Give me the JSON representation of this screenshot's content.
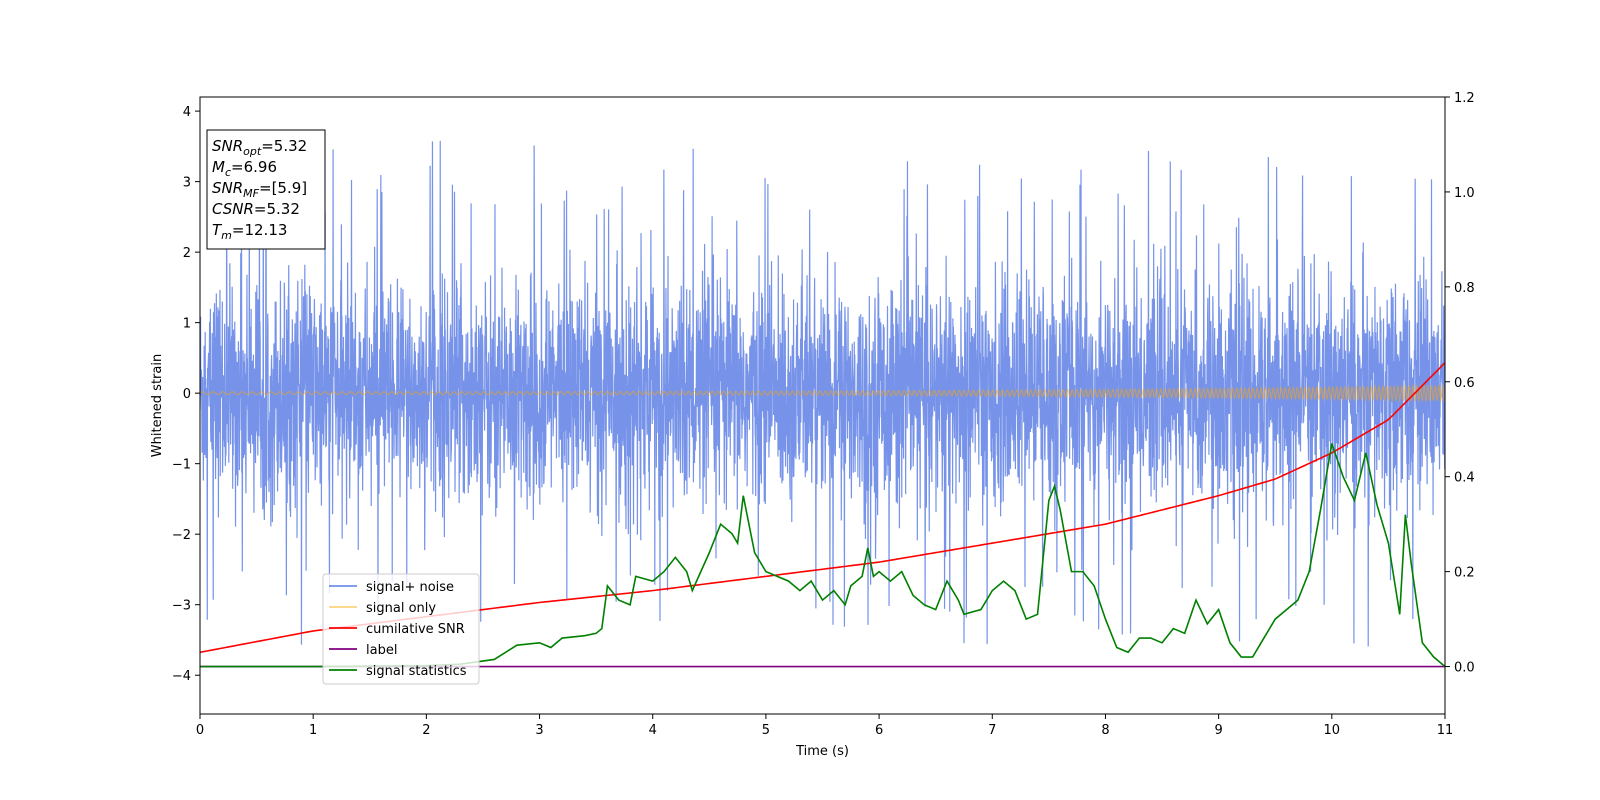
{
  "chart_data": {
    "type": "line",
    "xlabel": "Time (s)",
    "ylabel": "Whitened strain",
    "xlim": [
      0,
      11
    ],
    "ylim_left": [
      -4.55,
      4.2
    ],
    "ylim_right": [
      -0.1,
      1.2
    ],
    "x_ticks": [
      "0",
      "1",
      "2",
      "3",
      "4",
      "5",
      "6",
      "7",
      "8",
      "9",
      "10",
      "11"
    ],
    "y_left_ticks": [
      "−4",
      "−3",
      "−2",
      "−1",
      "0",
      "1",
      "2",
      "3",
      "4"
    ],
    "y_right_ticks": [
      "0.0",
      "0.2",
      "0.4",
      "0.6",
      "0.8",
      "1.0",
      "1.2"
    ],
    "grid": false,
    "legend_position": "lower-left",
    "annotation": {
      "snr_opt": {
        "var": "SNR",
        "sub": "opt",
        "value": "=5.32"
      },
      "mc": {
        "var": "M",
        "sub": "c",
        "value": "=6.96"
      },
      "snr_mf": {
        "var": "SNR",
        "sub": "MF",
        "value": "=[5.9]"
      },
      "csnr": {
        "var": "CSNR",
        "sub": "",
        "value": "=5.32"
      },
      "tm": {
        "var": "T",
        "sub": "m",
        "value": "=12.13"
      }
    },
    "series": [
      {
        "name": "signal+ noise",
        "axis": "left",
        "color": "#4169e1",
        "description_values": "dense whitened noise, |amplitude| mostly < 2.3, spikes to ~3.8 and down to ~-4.2",
        "amplitude_envelope": 2.2
      },
      {
        "name": "signal only",
        "axis": "left",
        "color": "#ffa500",
        "amp_start": 0.02,
        "amp_end": 0.11
      },
      {
        "name": "cumilative SNR",
        "axis": "right",
        "color": "#ff0000",
        "x": [
          0,
          1,
          2,
          3,
          4,
          5,
          6,
          7,
          8,
          9,
          9.5,
          10,
          10.5,
          11
        ],
        "values": [
          0.03,
          0.075,
          0.105,
          0.135,
          0.16,
          0.19,
          0.22,
          0.26,
          0.3,
          0.36,
          0.395,
          0.45,
          0.52,
          0.64
        ]
      },
      {
        "name": "label",
        "axis": "right",
        "color": "#800080",
        "x": [
          0,
          11
        ],
        "values": [
          0.0,
          0.0
        ]
      },
      {
        "name": "signal statistics",
        "axis": "right",
        "color": "#008000",
        "x": [
          0,
          1,
          2,
          2.3,
          2.6,
          2.8,
          3.0,
          3.1,
          3.2,
          3.4,
          3.5,
          3.55,
          3.6,
          3.7,
          3.8,
          3.85,
          4.0,
          4.1,
          4.2,
          4.3,
          4.35,
          4.5,
          4.6,
          4.7,
          4.75,
          4.8,
          4.9,
          5.0,
          5.2,
          5.3,
          5.4,
          5.5,
          5.6,
          5.7,
          5.75,
          5.85,
          5.9,
          5.95,
          6.0,
          6.1,
          6.2,
          6.3,
          6.4,
          6.5,
          6.6,
          6.7,
          6.75,
          6.9,
          7.0,
          7.1,
          7.2,
          7.3,
          7.4,
          7.5,
          7.55,
          7.6,
          7.7,
          7.8,
          7.9,
          8.0,
          8.1,
          8.2,
          8.3,
          8.4,
          8.5,
          8.6,
          8.7,
          8.8,
          8.9,
          9.0,
          9.1,
          9.2,
          9.3,
          9.4,
          9.5,
          9.6,
          9.7,
          9.8,
          9.9,
          10.0,
          10.1,
          10.2,
          10.3,
          10.4,
          10.5,
          10.6,
          10.65,
          10.7,
          10.8,
          10.9,
          11.0
        ],
        "values": [
          0.0,
          0.0,
          0.002,
          0.005,
          0.015,
          0.045,
          0.05,
          0.04,
          0.06,
          0.065,
          0.07,
          0.08,
          0.17,
          0.14,
          0.13,
          0.19,
          0.18,
          0.2,
          0.23,
          0.2,
          0.16,
          0.24,
          0.3,
          0.28,
          0.26,
          0.36,
          0.24,
          0.2,
          0.18,
          0.16,
          0.18,
          0.14,
          0.16,
          0.13,
          0.17,
          0.19,
          0.25,
          0.19,
          0.2,
          0.18,
          0.2,
          0.15,
          0.13,
          0.12,
          0.18,
          0.14,
          0.11,
          0.12,
          0.16,
          0.18,
          0.16,
          0.1,
          0.11,
          0.35,
          0.38,
          0.33,
          0.2,
          0.2,
          0.17,
          0.1,
          0.04,
          0.03,
          0.06,
          0.06,
          0.05,
          0.08,
          0.07,
          0.14,
          0.09,
          0.12,
          0.05,
          0.02,
          0.02,
          0.06,
          0.1,
          0.12,
          0.14,
          0.2,
          0.33,
          0.47,
          0.4,
          0.35,
          0.45,
          0.34,
          0.26,
          0.11,
          0.32,
          0.22,
          0.05,
          0.02,
          0.0
        ]
      }
    ]
  }
}
